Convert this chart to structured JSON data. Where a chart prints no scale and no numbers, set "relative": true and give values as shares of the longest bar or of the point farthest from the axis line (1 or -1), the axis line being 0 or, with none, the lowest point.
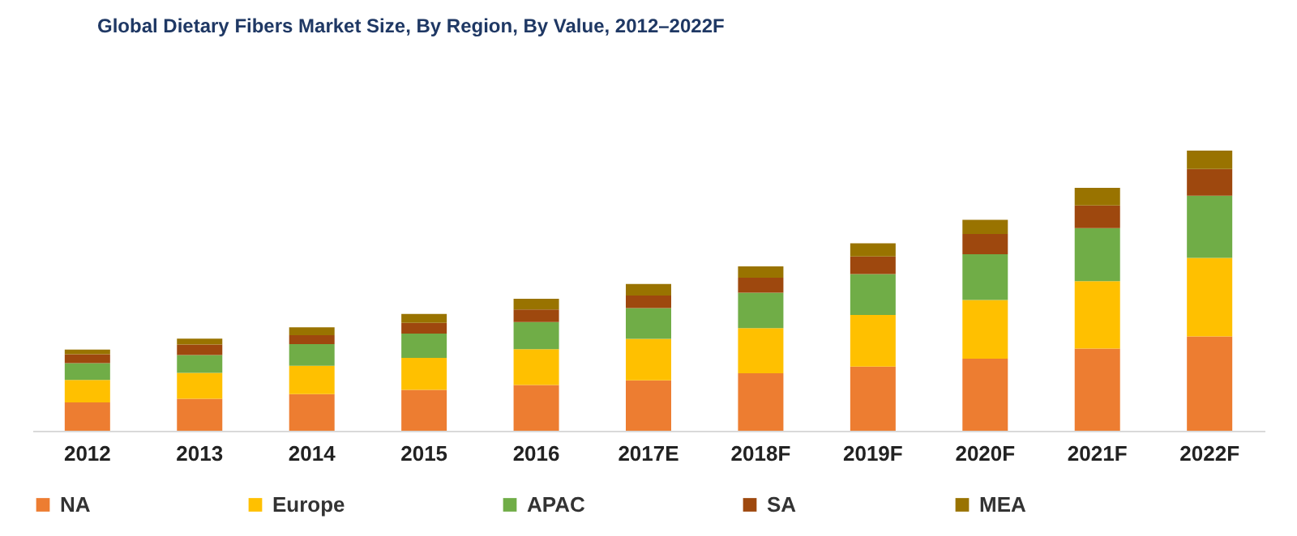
{
  "chart_data": {
    "type": "bar",
    "title": "Global Dietary Fibers Market Size, By Region, By Value, 2012–2022F",
    "categories": [
      "2012",
      "2013",
      "2014",
      "2015",
      "2016",
      "2017E",
      "2018F",
      "2019F",
      "2020F",
      "2021F",
      "2022F"
    ],
    "stacked": true,
    "relative": true,
    "legend": "bottom",
    "grid": false,
    "series": [
      {
        "name": "NA",
        "color": "#ed7d31",
        "values": [
          0.101,
          0.114,
          0.131,
          0.146,
          0.163,
          0.18,
          0.205,
          0.229,
          0.257,
          0.293,
          0.337
        ]
      },
      {
        "name": "Europe",
        "color": "#ffc000",
        "values": [
          0.08,
          0.093,
          0.101,
          0.114,
          0.128,
          0.148,
          0.161,
          0.184,
          0.21,
          0.241,
          0.28
        ]
      },
      {
        "name": "APAC",
        "color": "#70ad47",
        "values": [
          0.06,
          0.063,
          0.077,
          0.087,
          0.097,
          0.11,
          0.127,
          0.146,
          0.163,
          0.189,
          0.222
        ]
      },
      {
        "name": "SA",
        "color": "#9e480e",
        "values": [
          0.032,
          0.038,
          0.032,
          0.038,
          0.045,
          0.045,
          0.053,
          0.063,
          0.072,
          0.081,
          0.095
        ]
      },
      {
        "name": "MEA",
        "color": "#997300",
        "values": [
          0.017,
          0.021,
          0.028,
          0.032,
          0.038,
          0.041,
          0.041,
          0.047,
          0.051,
          0.063,
          0.066
        ]
      }
    ]
  }
}
